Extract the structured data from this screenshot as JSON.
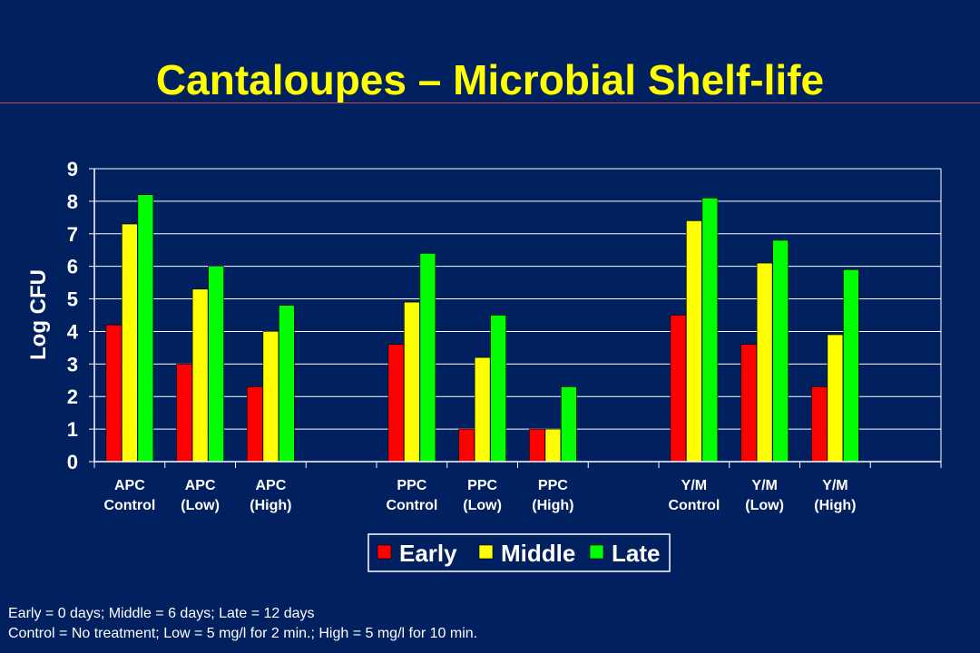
{
  "title": "Cantaloupes – Microbial Shelf-life",
  "footnotes": {
    "line1": "Early = 0 days; Middle = 6 days; Late = 12 days",
    "line2": "Control = No treatment; Low = 5 mg/l for 2 min.; High = 5 mg/l for 10 min."
  },
  "chart_data": {
    "type": "bar",
    "ylabel": "Log CFU",
    "ylim": [
      0,
      9
    ],
    "yticks": [
      0,
      1,
      2,
      3,
      4,
      5,
      6,
      7,
      8,
      9
    ],
    "grid": true,
    "legend_position": "bottom",
    "categories": [
      [
        "APC",
        "Control"
      ],
      [
        "APC",
        "(Low)"
      ],
      [
        "APC",
        "(High)"
      ],
      [
        "",
        ""
      ],
      [
        "PPC",
        "Control"
      ],
      [
        "PPC",
        "(Low)"
      ],
      [
        "PPC",
        "(High)"
      ],
      [
        "",
        ""
      ],
      [
        "Y/M",
        "Control"
      ],
      [
        "Y/M",
        "(Low)"
      ],
      [
        "Y/M",
        "(High)"
      ],
      [
        "",
        ""
      ]
    ],
    "series": [
      {
        "name": "Early",
        "color": "#ff0000",
        "values": [
          4.2,
          3.0,
          2.3,
          null,
          3.6,
          1.0,
          1.0,
          null,
          4.5,
          3.6,
          2.3,
          null
        ]
      },
      {
        "name": "Middle",
        "color": "#ffff00",
        "values": [
          7.3,
          5.3,
          4.0,
          null,
          4.9,
          3.2,
          1.0,
          null,
          7.4,
          6.1,
          3.9,
          null
        ]
      },
      {
        "name": "Late",
        "color": "#00ff00",
        "values": [
          8.2,
          6.0,
          4.8,
          null,
          6.4,
          4.5,
          2.3,
          null,
          8.1,
          6.8,
          5.9,
          null
        ]
      }
    ]
  }
}
